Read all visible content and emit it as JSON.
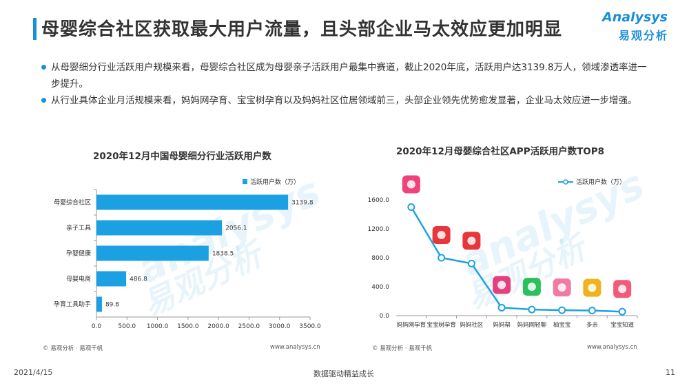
{
  "header": {
    "title": "母婴综合社区获取最大用户流量，且头部企业马太效应更加明显",
    "logo_en": "Analysys",
    "logo_cn": "易观分析"
  },
  "bullets": [
    "从母婴细分行业活跃用户规模来看，母婴综合社区成为母婴亲子活跃用户最集中赛道，截止2020年底，活跃用户达3139.8万人，领域渗透率进一步提升。",
    "从行业具体企业月活规模来看，妈妈网孕育、宝宝树孕育以及妈妈社区位居领域前三，头部企业领先优势愈发显著，企业马太效应进一步增强。"
  ],
  "watermark": {
    "en": "analysys",
    "cn": "易观分析"
  },
  "chart_data": [
    {
      "type": "bar",
      "orientation": "horizontal",
      "title": "2020年12月中国母婴细分行业活跃用户数",
      "legend": "活跃用户数（万）",
      "legend_position": "top-right",
      "categories": [
        "母婴综合社区",
        "亲子工具",
        "孕婴健康",
        "母婴电商",
        "孕育工具助手"
      ],
      "values": [
        3139.8,
        2056.1,
        1838.5,
        486.8,
        89.8
      ],
      "value_labels": [
        "3139.8",
        "2056.1",
        "1838.5",
        "486.8",
        "89.8"
      ],
      "xlim": [
        0,
        3500
      ],
      "xticks": [
        "0.0",
        "500.0",
        "1000.0",
        "1500.0",
        "2000.0",
        "2500.0",
        "3000.0",
        "3500.0"
      ],
      "color": "#1ba1e2",
      "grid": false,
      "source": "© 易观分析 · 易观千帆",
      "url": "www.analysys.cn"
    },
    {
      "type": "line",
      "title": "2020年12月母婴综合社区APP活跃用户数TOP8",
      "legend": "活跃用户数（万）",
      "legend_position": "top-right",
      "categories": [
        "妈妈网孕育",
        "宝宝树孕育",
        "妈妈社区",
        "妈妈帮",
        "妈妈网轻聊",
        "柚宝宝",
        "多亲",
        "宝宝知道"
      ],
      "values": [
        1500,
        800,
        720,
        110,
        85,
        75,
        70,
        55
      ],
      "ylim": [
        0,
        1600
      ],
      "yticks": [
        "0.0",
        "400.0",
        "800.0",
        "1200.0",
        "1600.0"
      ],
      "icon_colors": [
        "#f0427a",
        "#e8363a",
        "#e8363a",
        "#e5407e",
        "#2bbf5e",
        "#f07aa0",
        "#f2b21c",
        "#f25a7a"
      ],
      "color": "#1ba1e2",
      "grid": false,
      "source": "© 易观分析 · 易观千帆",
      "url": "www.analysys.cn"
    }
  ],
  "footer": {
    "date": "2021/4/15",
    "slogan": "数据驱动精益成长",
    "page": "11"
  }
}
